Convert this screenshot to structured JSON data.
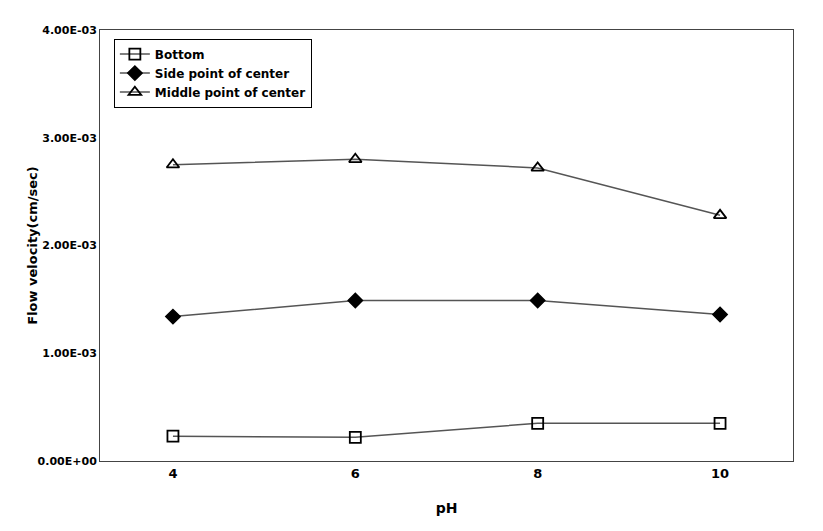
{
  "chart_data": {
    "type": "line",
    "xlabel": "pH",
    "ylabel": "Flow velocity(cm/sec)",
    "x": [
      4,
      6,
      8,
      10
    ],
    "series": [
      {
        "name": "Bottom",
        "color": "#555555",
        "marker": "square-open",
        "values": [
          0.00023,
          0.00022,
          0.00035,
          0.00035
        ]
      },
      {
        "name": "Side point of center",
        "color": "#555555",
        "marker": "diamond",
        "values": [
          0.00134,
          0.00149,
          0.00149,
          0.00136
        ]
      },
      {
        "name": "Middle point of center",
        "color": "#555555",
        "marker": "triangle-up-open",
        "values": [
          0.00275,
          0.0028,
          0.00272,
          0.00228
        ]
      }
    ],
    "xlim": [
      3.2,
      10.8
    ],
    "xticks": [
      4,
      6,
      8,
      10
    ],
    "ylim": [
      0,
      0.004
    ],
    "yticks": [
      {
        "value": 0.0,
        "label": "0.00E+00"
      },
      {
        "value": 0.001,
        "label": "1.00E-03"
      },
      {
        "value": 0.002,
        "label": "2.00E-03"
      },
      {
        "value": 0.003,
        "label": "3.00E-03"
      },
      {
        "value": 0.004,
        "label": "4.00E-03"
      }
    ],
    "grid": false,
    "legend": "upper left"
  }
}
